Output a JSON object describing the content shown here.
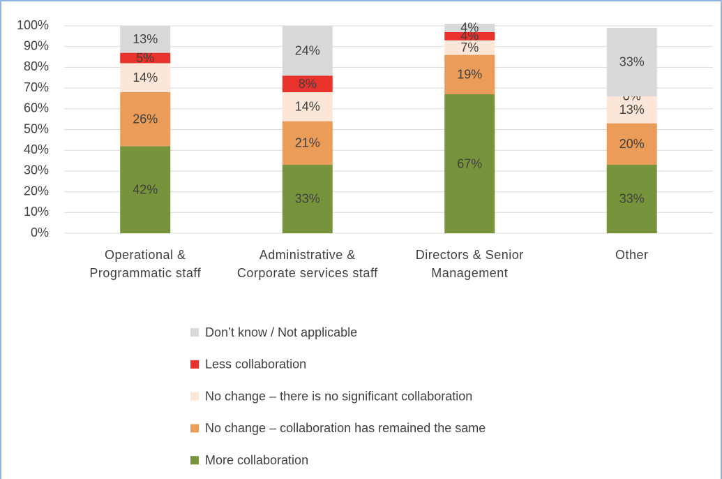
{
  "chart_data": {
    "type": "stacked_bar",
    "categories": [
      "Operational & Programmatic staff",
      "Administrative & Corporate services staff",
      "Directors & Senior Management",
      "Other"
    ],
    "series": [
      {
        "name": "More collaboration",
        "color": "#77933c",
        "values": [
          42,
          33,
          67,
          33
        ],
        "value_labels": [
          "42%",
          "33%",
          "67%",
          "33%"
        ]
      },
      {
        "name": "No change – collaboration has remained the same",
        "color": "#eb9c59",
        "values": [
          26,
          21,
          19,
          20
        ],
        "value_labels": [
          "26%",
          "21%",
          "19%",
          "20%"
        ]
      },
      {
        "name": "No change – there is no significant collaboration",
        "color": "#fbe6d7",
        "values": [
          14,
          14,
          7,
          13
        ],
        "value_labels": [
          "14%",
          "14%",
          "7%",
          "13%"
        ]
      },
      {
        "name": "Less collaboration",
        "color": "#e8322b",
        "values": [
          5,
          8,
          4,
          0
        ],
        "value_labels": [
          "5%",
          "8%",
          "4%",
          "0%"
        ]
      },
      {
        "name": "Don’t know / Not applicable",
        "color": "#d9d9d9",
        "values": [
          13,
          24,
          4,
          33
        ],
        "value_labels": [
          "13%",
          "24%",
          "4%",
          "33%"
        ]
      }
    ],
    "ylim": [
      0,
      100
    ],
    "yticks": [
      {
        "value": 0,
        "label": "0%"
      },
      {
        "value": 10,
        "label": "10%"
      },
      {
        "value": 20,
        "label": "20%"
      },
      {
        "value": 30,
        "label": "30%"
      },
      {
        "value": 40,
        "label": "40%"
      },
      {
        "value": 50,
        "label": "50%"
      },
      {
        "value": 60,
        "label": "60%"
      },
      {
        "value": 70,
        "label": "70%"
      },
      {
        "value": 80,
        "label": "80%"
      },
      {
        "value": 90,
        "label": "90%"
      },
      {
        "value": 100,
        "label": "100%"
      }
    ],
    "grid": true,
    "legend": "bottom"
  }
}
